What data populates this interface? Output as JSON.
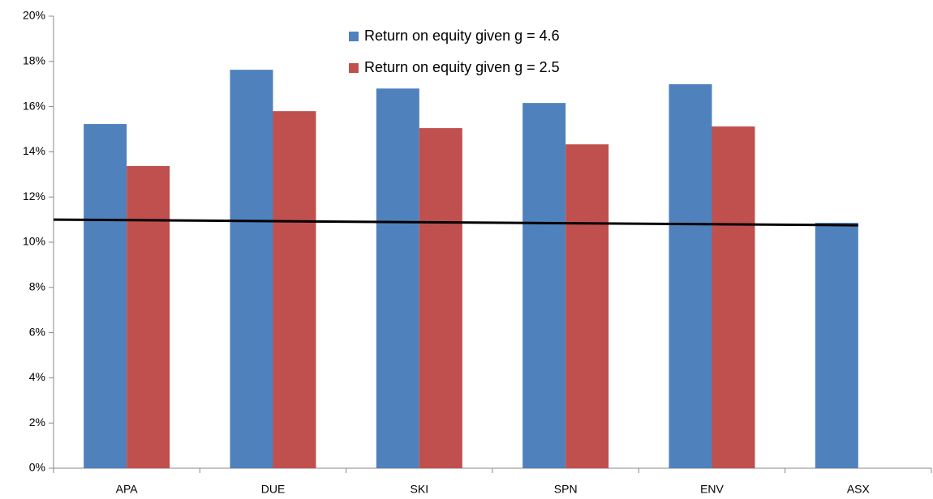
{
  "chart_data": {
    "type": "bar",
    "categories": [
      "APA",
      "DUE",
      "SKI",
      "SPN",
      "ENV",
      "ASX"
    ],
    "series": [
      {
        "name": "Return on equity given g = 4.6",
        "color": "#4f81bd",
        "values": [
          15.23,
          17.63,
          16.8,
          16.16,
          16.99,
          10.86
        ]
      },
      {
        "name": "Return on equity given g = 2.5",
        "color": "#c0504d",
        "values": [
          13.37,
          15.8,
          15.05,
          14.33,
          15.12,
          null
        ]
      }
    ],
    "trend_line": {
      "start": 11.0,
      "end": 10.75,
      "color": "#000000"
    },
    "ylim": [
      0,
      20
    ],
    "yticks": [
      {
        "value": 0,
        "label": "0%"
      },
      {
        "value": 2,
        "label": "2%"
      },
      {
        "value": 4,
        "label": "4%"
      },
      {
        "value": 6,
        "label": "6%"
      },
      {
        "value": 8,
        "label": "8%"
      },
      {
        "value": 10,
        "label": "10%"
      },
      {
        "value": 12,
        "label": "12%"
      },
      {
        "value": 14,
        "label": "14%"
      },
      {
        "value": 16,
        "label": "16%"
      },
      {
        "value": 18,
        "label": "18%"
      },
      {
        "value": 20,
        "label": "20%"
      }
    ],
    "grid": false
  }
}
